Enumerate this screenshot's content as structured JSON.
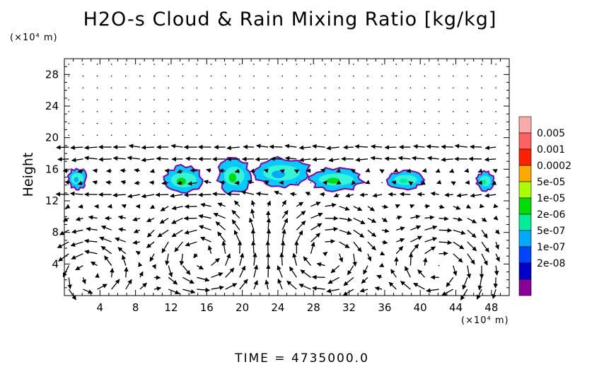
{
  "chart_data": {
    "type": "heatmap",
    "title": "H2O-s Cloud & Rain Mixing Ratio [kg/kg]",
    "xlabel": "",
    "ylabel": "Height",
    "x_unit": "(×10⁴ m)",
    "y_unit": "(×10⁴ m)",
    "xlim": [
      0,
      50
    ],
    "ylim": [
      0,
      30
    ],
    "x_ticks": [
      4,
      8,
      12,
      16,
      20,
      24,
      28,
      32,
      36,
      40,
      44,
      48
    ],
    "y_ticks": [
      4,
      8,
      12,
      16,
      20,
      24,
      28
    ],
    "colorbar": {
      "labels": [
        "0.005",
        "0.001",
        "0.0002",
        "5e-05",
        "1e-05",
        "2e-06",
        "5e-07",
        "1e-07",
        "2e-08"
      ],
      "colors": [
        "#ffaaaa",
        "#ff6060",
        "#ff2000",
        "#ffaa00",
        "#aaff00",
        "#00dd00",
        "#00ee99",
        "#00aaff",
        "#0044ff",
        "#0000cc",
        "#880099"
      ]
    },
    "cloud_regions": [
      {
        "x": [
          0.3,
          2.6
        ],
        "y": [
          13.4,
          16.2
        ],
        "peak": "5e-07"
      },
      {
        "x": [
          11.0,
          15.8
        ],
        "y": [
          12.8,
          16.5
        ],
        "peak": "1e-05"
      },
      {
        "x": [
          17.2,
          21.0
        ],
        "y": [
          12.8,
          17.5
        ],
        "peak": "1e-05"
      },
      {
        "x": [
          21.0,
          27.8
        ],
        "y": [
          13.6,
          17.5
        ],
        "peak": "5e-07"
      },
      {
        "x": [
          27.3,
          33.8
        ],
        "y": [
          13.2,
          16.2
        ],
        "peak": "1e-05"
      },
      {
        "x": [
          36.2,
          40.5
        ],
        "y": [
          13.4,
          15.9
        ],
        "peak": "2e-06"
      },
      {
        "x": [
          46.3,
          48.3
        ],
        "y": [
          13.2,
          15.8
        ],
        "peak": "2e-06"
      }
    ],
    "wind_vectors": "shown",
    "grid": false
  },
  "time_label": "TIME = 4735000.0"
}
